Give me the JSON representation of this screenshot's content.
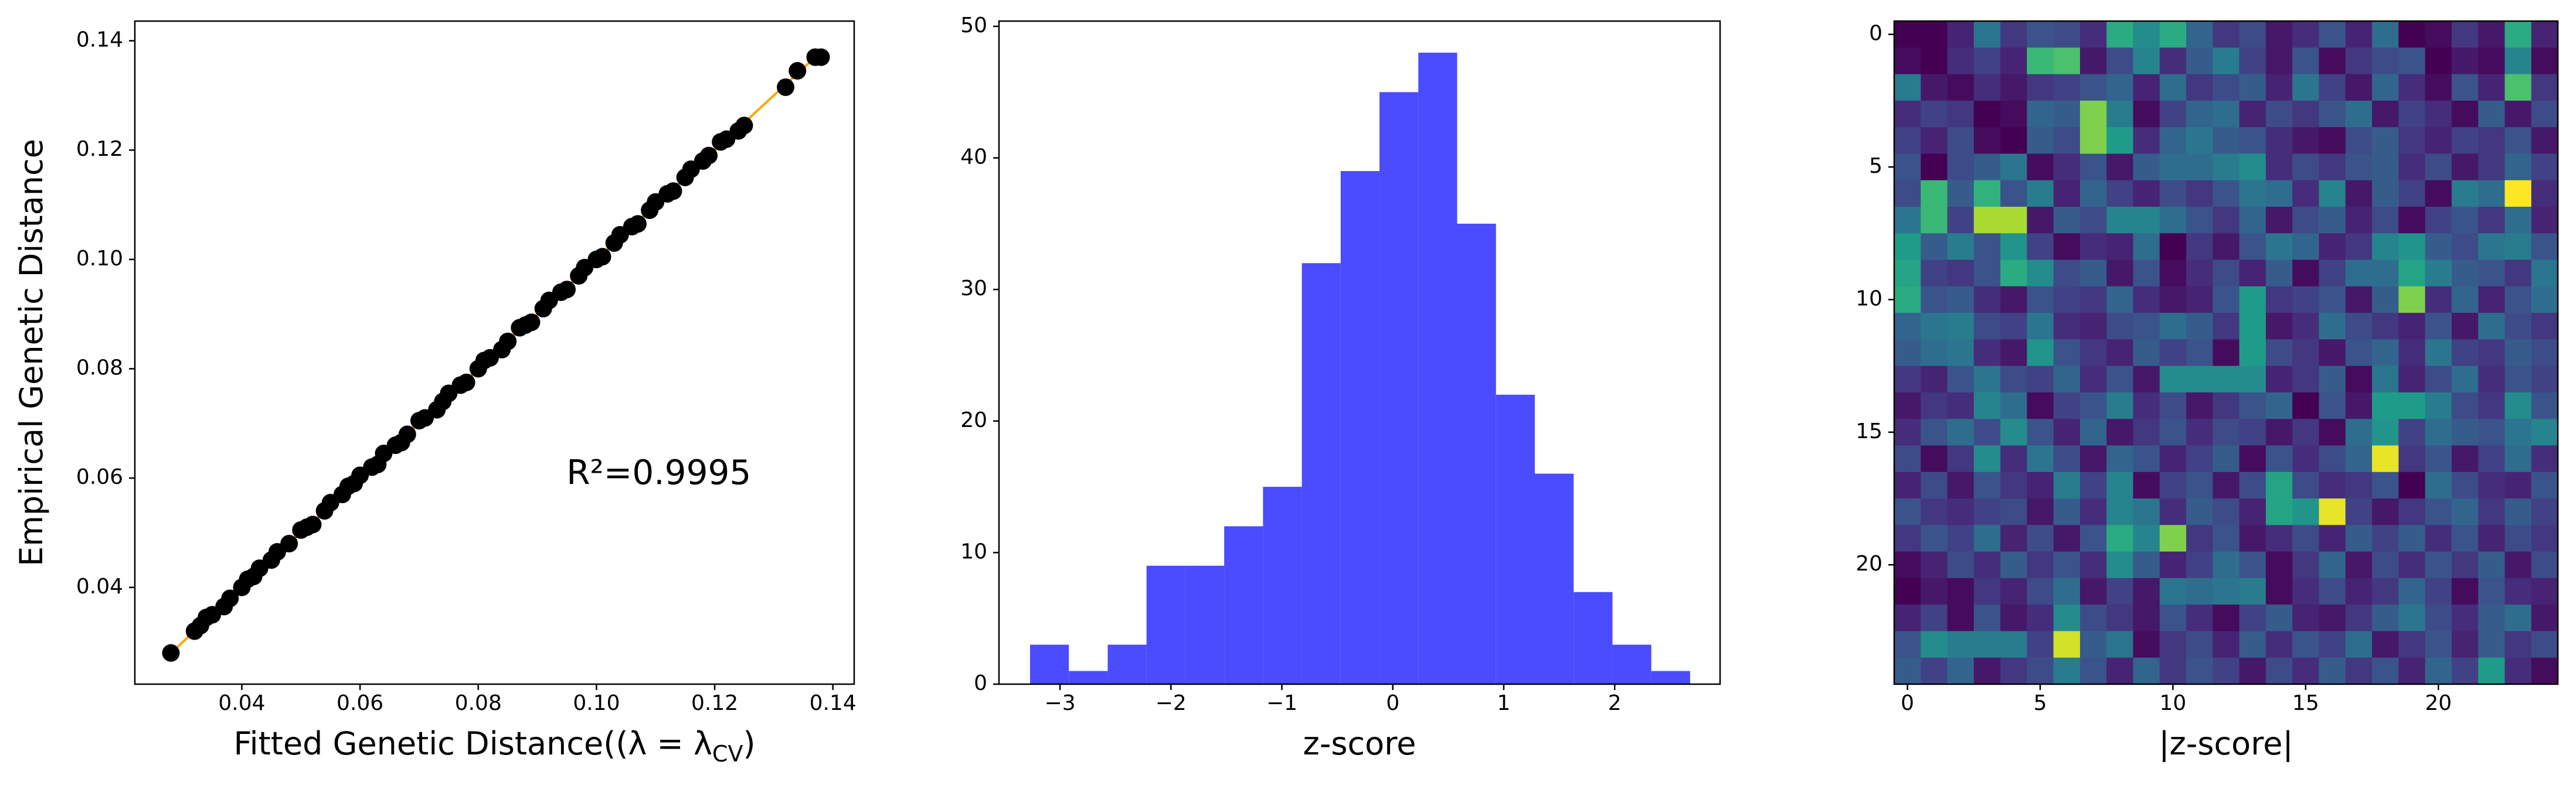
{
  "chart_data": [
    {
      "type": "scatter",
      "xlabel": "Fitted Genetic Distance((λ = λ",
      "xlabel_sub": "CV",
      "xlabel_end": ")",
      "ylabel": "Empirical Genetic Distance",
      "annotation": "R²=0.9995",
      "color": "#000000",
      "x": [
        0.028,
        0.032,
        0.033,
        0.034,
        0.035,
        0.037,
        0.038,
        0.04,
        0.041,
        0.042,
        0.043,
        0.045,
        0.046,
        0.048,
        0.05,
        0.051,
        0.052,
        0.054,
        0.055,
        0.057,
        0.058,
        0.059,
        0.06,
        0.062,
        0.063,
        0.064,
        0.066,
        0.067,
        0.068,
        0.07,
        0.071,
        0.073,
        0.074,
        0.075,
        0.077,
        0.078,
        0.08,
        0.081,
        0.082,
        0.084,
        0.085,
        0.087,
        0.088,
        0.089,
        0.091,
        0.092,
        0.094,
        0.095,
        0.097,
        0.098,
        0.1,
        0.101,
        0.103,
        0.104,
        0.106,
        0.107,
        0.109,
        0.11,
        0.112,
        0.113,
        0.115,
        0.116,
        0.118,
        0.119,
        0.121,
        0.122,
        0.124,
        0.125,
        0.132,
        0.134,
        0.137,
        0.138
      ],
      "values": [
        0.028,
        0.032,
        0.033,
        0.0345,
        0.035,
        0.0365,
        0.038,
        0.04,
        0.0415,
        0.042,
        0.0435,
        0.045,
        0.0465,
        0.048,
        0.0505,
        0.051,
        0.0515,
        0.054,
        0.0555,
        0.057,
        0.0585,
        0.059,
        0.0605,
        0.062,
        0.0625,
        0.0645,
        0.066,
        0.0665,
        0.068,
        0.0705,
        0.071,
        0.0725,
        0.074,
        0.0755,
        0.077,
        0.0775,
        0.08,
        0.0815,
        0.082,
        0.0835,
        0.085,
        0.0875,
        0.088,
        0.0885,
        0.091,
        0.0925,
        0.094,
        0.0945,
        0.097,
        0.0985,
        0.1,
        0.1005,
        0.103,
        0.1045,
        0.106,
        0.1065,
        0.109,
        0.1105,
        0.112,
        0.1125,
        0.115,
        0.1165,
        0.118,
        0.119,
        0.1215,
        0.122,
        0.1235,
        0.1245,
        0.1315,
        0.1345,
        0.137,
        0.137
      ],
      "fit_line": {
        "color": "#ffa500",
        "x": [
          0.028,
          0.138
        ],
        "values": [
          0.028,
          0.138
        ]
      },
      "xlim": [
        0.0219,
        0.1436
      ],
      "ylim": [
        0.0223,
        0.1436
      ],
      "xticks": [
        0.04,
        0.06,
        0.08,
        {
          "value": 0.1,
          "label": "0.10"
        },
        0.12,
        0.14
      ],
      "yticks": [
        0.04,
        0.06,
        0.08,
        {
          "value": 0.1,
          "label": "0.10"
        },
        0.12,
        0.14
      ]
    },
    {
      "type": "histogram",
      "xlabel": "z-score",
      "color": "#4b4bff",
      "bins": [
        -3.27,
        -2.92,
        -2.57,
        -2.22,
        -1.87,
        -1.52,
        -1.17,
        -0.82,
        -0.47,
        -0.12,
        0.23,
        0.58,
        0.93,
        1.28,
        1.63,
        1.98,
        2.33,
        2.68
      ],
      "values": [
        3,
        1,
        3,
        9,
        9,
        12,
        15,
        32,
        39,
        45,
        48,
        35,
        22,
        16,
        7,
        3,
        1
      ],
      "xlim": [
        -3.55,
        2.95
      ],
      "ylim": [
        0,
        50.4
      ],
      "xticks": [
        {
          "value": -3,
          "label": "−3"
        },
        {
          "value": -2,
          "label": "−2"
        },
        {
          "value": -1,
          "label": "−1"
        },
        0,
        1,
        2
      ],
      "yticks": [
        0,
        10,
        20,
        30,
        40,
        50
      ]
    },
    {
      "type": "heatmap",
      "xlabel": "|z-score|",
      "colormap": "viridis",
      "xlim": [
        -0.5,
        24.5
      ],
      "ylim": [
        24.5,
        -0.5
      ],
      "xticks": [
        0,
        5,
        10,
        15,
        20
      ],
      "yticks": [
        0,
        5,
        10,
        15,
        20
      ],
      "values": [
        [
          0.1,
          0.1,
          0.4,
          1.3,
          0.6,
          0.9,
          0.8,
          0.5,
          2.0,
          1.6,
          2.0,
          1.1,
          0.6,
          0.8,
          0.3,
          0.5,
          0.9,
          0.4,
          1.2,
          0.1,
          0.2,
          0.6,
          0.3,
          2.0,
          0.4
        ],
        [
          0.2,
          0.1,
          0.5,
          0.7,
          0.4,
          2.2,
          2.3,
          0.3,
          0.8,
          1.5,
          0.5,
          1.0,
          1.4,
          0.7,
          0.3,
          0.9,
          0.2,
          0.6,
          0.8,
          0.9,
          0.1,
          0.3,
          0.2,
          1.5,
          0.2
        ],
        [
          1.4,
          0.3,
          0.2,
          0.5,
          0.3,
          0.6,
          0.7,
          0.9,
          1.1,
          0.4,
          1.2,
          0.6,
          0.8,
          1.0,
          0.4,
          1.3,
          0.7,
          0.3,
          1.1,
          0.5,
          0.2,
          0.9,
          0.4,
          2.3,
          0.6
        ],
        [
          0.5,
          0.7,
          0.6,
          0.1,
          0.2,
          1.1,
          1.0,
          2.6,
          1.4,
          0.2,
          0.7,
          1.1,
          1.2,
          0.4,
          0.8,
          0.6,
          0.9,
          1.2,
          0.3,
          0.7,
          0.5,
          0.2,
          1.0,
          0.3,
          0.8
        ],
        [
          0.7,
          0.4,
          0.8,
          0.2,
          0.1,
          1.0,
          0.8,
          2.6,
          1.8,
          0.5,
          1.1,
          1.3,
          1.0,
          0.9,
          0.5,
          0.3,
          0.2,
          0.8,
          1.0,
          0.6,
          0.4,
          0.7,
          0.6,
          0.9,
          0.3
        ],
        [
          0.9,
          0.1,
          0.8,
          1.0,
          1.3,
          0.2,
          0.5,
          0.9,
          0.3,
          1.0,
          1.2,
          1.2,
          1.4,
          1.6,
          0.5,
          0.8,
          0.6,
          0.9,
          1.0,
          0.5,
          0.8,
          0.3,
          0.6,
          1.1,
          0.7
        ],
        [
          0.8,
          2.2,
          1.0,
          2.1,
          0.9,
          1.4,
          0.4,
          1.1,
          0.7,
          0.4,
          0.8,
          0.6,
          0.9,
          1.3,
          1.2,
          0.5,
          1.5,
          0.3,
          1.0,
          0.7,
          0.2,
          1.4,
          1.2,
          3.2,
          0.5
        ],
        [
          1.3,
          2.2,
          0.7,
          2.8,
          2.8,
          0.3,
          1.0,
          0.8,
          1.5,
          1.5,
          1.2,
          0.9,
          0.6,
          1.1,
          0.3,
          0.8,
          1.0,
          0.4,
          0.8,
          0.2,
          0.7,
          0.9,
          0.6,
          1.2,
          0.4
        ],
        [
          1.8,
          1.0,
          1.4,
          0.9,
          1.7,
          0.7,
          0.2,
          0.5,
          0.4,
          1.2,
          0.1,
          0.6,
          0.3,
          0.9,
          1.3,
          1.1,
          0.4,
          0.6,
          1.5,
          1.7,
          1.0,
          0.8,
          1.3,
          1.4,
          0.9
        ],
        [
          1.9,
          0.7,
          0.6,
          0.9,
          2.0,
          1.6,
          0.8,
          1.0,
          0.3,
          0.9,
          0.2,
          0.5,
          0.8,
          0.4,
          1.0,
          0.2,
          0.7,
          1.2,
          1.2,
          1.9,
          1.4,
          1.0,
          0.9,
          0.6,
          1.3
        ],
        [
          2.0,
          0.9,
          1.0,
          0.5,
          0.3,
          0.9,
          0.7,
          0.6,
          1.1,
          0.5,
          0.3,
          0.4,
          0.9,
          1.8,
          0.6,
          0.7,
          0.9,
          0.3,
          1.0,
          2.6,
          0.5,
          1.1,
          0.4,
          0.9,
          1.2
        ],
        [
          1.1,
          1.3,
          1.4,
          0.8,
          0.7,
          1.3,
          0.5,
          0.4,
          0.8,
          0.9,
          1.2,
          1.0,
          0.6,
          1.8,
          0.3,
          0.5,
          1.2,
          0.8,
          0.6,
          0.4,
          0.9,
          0.3,
          1.2,
          0.8,
          0.6
        ],
        [
          1.0,
          1.2,
          1.3,
          0.5,
          0.3,
          1.7,
          0.9,
          0.6,
          0.4,
          1.0,
          0.7,
          0.9,
          0.2,
          1.8,
          0.8,
          0.6,
          0.3,
          0.9,
          1.1,
          0.5,
          1.3,
          0.7,
          0.6,
          1.0,
          0.8
        ],
        [
          0.6,
          0.4,
          0.9,
          1.3,
          0.8,
          0.7,
          1.1,
          0.5,
          0.9,
          0.3,
          1.6,
          1.6,
          1.6,
          1.6,
          0.4,
          0.6,
          1.0,
          0.2,
          1.3,
          0.4,
          0.8,
          1.2,
          0.5,
          0.9,
          0.7
        ],
        [
          0.3,
          0.6,
          0.5,
          1.5,
          1.2,
          0.2,
          0.7,
          0.9,
          1.4,
          0.5,
          0.8,
          0.3,
          0.6,
          0.9,
          1.1,
          0.1,
          0.9,
          0.3,
          1.8,
          1.8,
          1.4,
          0.8,
          0.6,
          1.6,
          0.9
        ],
        [
          0.5,
          0.9,
          1.2,
          0.8,
          1.6,
          0.9,
          0.4,
          1.1,
          0.3,
          0.6,
          0.9,
          0.5,
          0.8,
          0.7,
          0.3,
          0.6,
          0.2,
          1.2,
          1.7,
          0.7,
          1.2,
          1.0,
          0.9,
          1.3,
          1.5
        ],
        [
          0.8,
          0.2,
          0.6,
          1.6,
          0.5,
          1.3,
          0.8,
          0.3,
          1.1,
          0.9,
          0.4,
          0.7,
          1.0,
          0.2,
          0.9,
          0.5,
          0.8,
          1.1,
          3.1,
          0.6,
          0.9,
          0.3,
          0.7,
          1.2,
          0.5
        ],
        [
          0.4,
          0.8,
          0.3,
          0.9,
          0.6,
          0.4,
          1.4,
          0.7,
          1.5,
          0.2,
          0.7,
          0.9,
          0.3,
          0.8,
          1.9,
          0.8,
          0.5,
          0.6,
          0.9,
          0.1,
          1.2,
          0.8,
          0.5,
          0.4,
          0.9
        ],
        [
          0.9,
          0.6,
          0.5,
          0.7,
          0.8,
          0.3,
          1.0,
          0.5,
          1.5,
          1.3,
          0.5,
          1.0,
          0.8,
          0.4,
          1.9,
          1.7,
          3.1,
          0.7,
          0.3,
          0.6,
          0.9,
          1.1,
          0.6,
          1.0,
          0.7
        ],
        [
          0.6,
          0.9,
          0.7,
          1.2,
          0.4,
          0.8,
          0.3,
          0.9,
          2.0,
          1.5,
          2.6,
          0.6,
          0.9,
          0.3,
          0.5,
          0.8,
          0.4,
          1.0,
          0.7,
          1.0,
          0.5,
          0.9,
          0.4,
          0.8,
          0.6
        ],
        [
          0.2,
          0.4,
          0.8,
          0.5,
          1.0,
          0.6,
          0.9,
          0.5,
          1.6,
          1.0,
          0.4,
          0.7,
          1.2,
          0.9,
          0.2,
          0.6,
          1.1,
          0.3,
          0.8,
          0.5,
          0.9,
          0.6,
          1.0,
          0.3,
          0.8
        ],
        [
          0.1,
          0.3,
          0.2,
          0.6,
          0.4,
          0.8,
          1.2,
          0.3,
          0.7,
          0.3,
          1.3,
          1.2,
          1.3,
          1.4,
          0.2,
          0.5,
          0.8,
          0.4,
          0.6,
          1.1,
          0.7,
          0.2,
          0.9,
          0.5,
          0.4
        ],
        [
          0.4,
          0.7,
          0.2,
          0.9,
          0.3,
          0.5,
          1.6,
          0.8,
          0.6,
          0.3,
          0.9,
          0.5,
          0.2,
          0.7,
          1.0,
          0.4,
          0.3,
          0.6,
          1.0,
          1.3,
          0.8,
          0.5,
          1.0,
          1.2,
          0.3
        ],
        [
          0.9,
          1.6,
          1.4,
          1.4,
          1.4,
          0.7,
          3.0,
          1.0,
          1.3,
          0.2,
          0.6,
          0.8,
          0.4,
          1.0,
          0.5,
          0.9,
          0.7,
          1.2,
          0.3,
          0.6,
          0.9,
          0.4,
          1.0,
          0.6,
          0.8
        ],
        [
          1.0,
          0.7,
          1.1,
          0.3,
          0.6,
          0.8,
          1.4,
          0.9,
          0.4,
          1.1,
          0.6,
          0.9,
          0.7,
          0.3,
          0.8,
          0.5,
          1.0,
          0.6,
          0.9,
          0.4,
          1.1,
          0.7,
          1.8,
          0.5,
          0.2
        ]
      ]
    }
  ]
}
